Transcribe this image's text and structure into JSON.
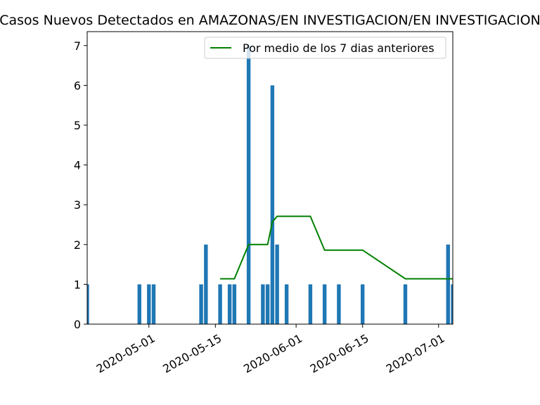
{
  "chart_data": {
    "type": "bar",
    "title": "Casos Nuevos Detectados en AMAZONAS/EN INVESTIGACION/EN INVESTIGACION",
    "xlabel": "",
    "ylabel": "",
    "x_type": "date",
    "xlim": [
      "2020-04-18",
      "2020-07-04"
    ],
    "ylim": [
      0,
      7.35
    ],
    "y_ticks": [
      0,
      1,
      2,
      3,
      4,
      5,
      6,
      7
    ],
    "x_ticks": [
      "2020-05-01",
      "2020-05-15",
      "2020-06-01",
      "2020-06-15",
      "2020-07-01"
    ],
    "grid": false,
    "legend_position": "top-right",
    "colors": {
      "bars": "#1f77b4",
      "average_line": "#008000"
    },
    "bars": {
      "dates": [
        "2020-04-18",
        "2020-04-29",
        "2020-05-01",
        "2020-05-02",
        "2020-05-12",
        "2020-05-13",
        "2020-05-16",
        "2020-05-18",
        "2020-05-19",
        "2020-05-22",
        "2020-05-25",
        "2020-05-26",
        "2020-05-27",
        "2020-05-28",
        "2020-05-30",
        "2020-06-04",
        "2020-06-07",
        "2020-06-10",
        "2020-06-15",
        "2020-06-24",
        "2020-07-03",
        "2020-07-04"
      ],
      "values": [
        1,
        1,
        1,
        1,
        1,
        2,
        1,
        1,
        1,
        7,
        1,
        1,
        6,
        2,
        1,
        1,
        1,
        1,
        1,
        1,
        2,
        1
      ]
    },
    "series": [
      {
        "name": "Por medio de los 7 dias anteriores",
        "x": [
          "2020-05-16",
          "2020-05-19",
          "2020-05-22",
          "2020-05-26",
          "2020-05-27",
          "2020-05-28",
          "2020-06-04",
          "2020-06-07",
          "2020-06-15",
          "2020-06-24",
          "2020-07-03",
          "2020-07-04"
        ],
        "y": [
          1.14,
          1.14,
          2.0,
          2.0,
          2.57,
          2.71,
          2.71,
          1.86,
          1.86,
          1.14,
          1.14,
          1.14
        ]
      }
    ]
  }
}
